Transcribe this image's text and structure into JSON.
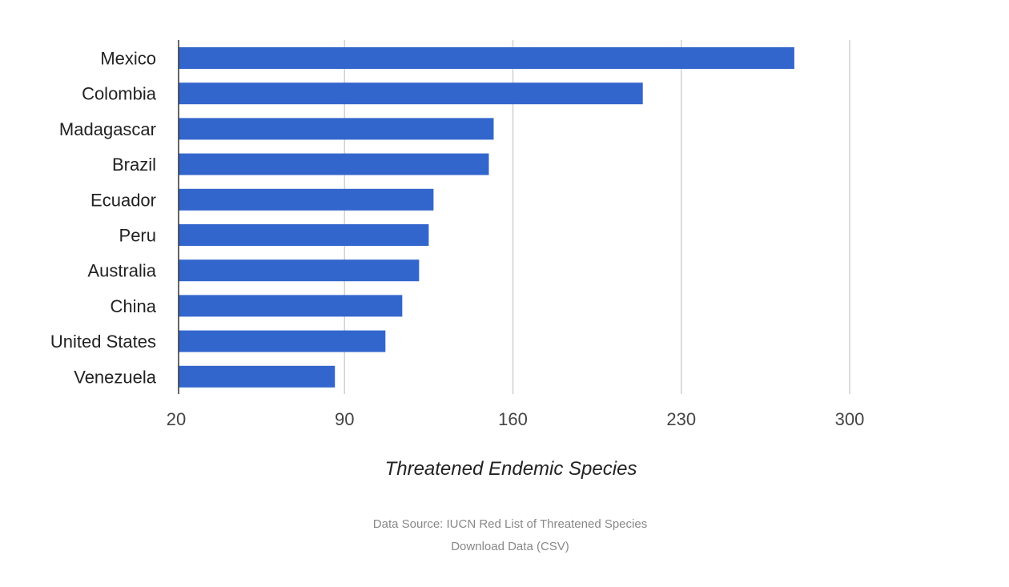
{
  "chart_data": {
    "type": "bar",
    "orientation": "horizontal",
    "categories": [
      "Mexico",
      "Colombia",
      "Madagascar",
      "Brazil",
      "Ecuador",
      "Peru",
      "Australia",
      "China",
      "United States",
      "Venezuela"
    ],
    "values": [
      277,
      214,
      152,
      150,
      127,
      125,
      121,
      114,
      107,
      86
    ],
    "xlabel": "Threatened Endemic Species",
    "ylabel": "",
    "xlim": [
      20,
      300
    ],
    "xticks": [
      "20",
      "90",
      "160",
      "230",
      "300"
    ],
    "grid": true,
    "bar_color": "#3366cc"
  },
  "footer": {
    "source": "Data Source: IUCN Red List of Threatened Species",
    "download_link": "Download Data (CSV)"
  }
}
